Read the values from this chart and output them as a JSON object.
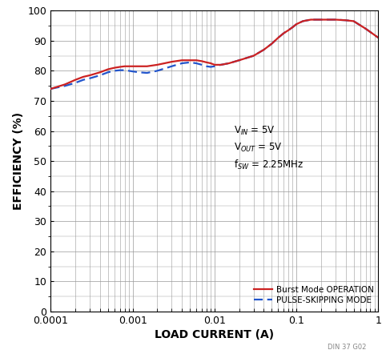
{
  "xlabel": "LOAD CURRENT (A)",
  "ylabel": "EFFICIENCY (%)",
  "ylim": [
    0,
    100
  ],
  "yticks": [
    0,
    10,
    20,
    30,
    40,
    50,
    60,
    70,
    80,
    90,
    100
  ],
  "annotation_lines": [
    "V$_{IN}$ = 5V",
    "V$_{OUT}$ = 5V",
    "f$_{SW}$ = 2.25MHz"
  ],
  "burst_color": "#cc2222",
  "pulse_color": "#2255cc",
  "burst_x": [
    0.0001,
    0.00015,
    0.0002,
    0.00025,
    0.0003,
    0.0004,
    0.0005,
    0.0006,
    0.0007,
    0.0008,
    0.0009,
    0.001,
    0.0012,
    0.0015,
    0.002,
    0.003,
    0.004,
    0.005,
    0.006,
    0.007,
    0.008,
    0.009,
    0.01,
    0.012,
    0.015,
    0.02,
    0.03,
    0.04,
    0.05,
    0.06,
    0.07,
    0.08,
    0.09,
    0.1,
    0.12,
    0.15,
    0.2,
    0.3,
    0.4,
    0.5,
    0.7,
    1.0
  ],
  "burst_y": [
    74,
    75.5,
    77,
    78,
    78.5,
    79.5,
    80.5,
    81,
    81.3,
    81.5,
    81.5,
    81.5,
    81.5,
    81.5,
    82.0,
    83.0,
    83.5,
    83.5,
    83.5,
    83.2,
    82.8,
    82.5,
    82.0,
    82.0,
    82.5,
    83.5,
    85.0,
    87.0,
    89.0,
    91.0,
    92.5,
    93.5,
    94.5,
    95.5,
    96.5,
    97.0,
    97.0,
    97.0,
    96.8,
    96.5,
    94.0,
    91.0
  ],
  "pulse_x": [
    0.0001,
    0.00015,
    0.0002,
    0.00025,
    0.0003,
    0.0004,
    0.0005,
    0.0006,
    0.0007,
    0.0008,
    0.0009,
    0.001,
    0.0012,
    0.0015,
    0.002,
    0.003,
    0.004,
    0.005,
    0.006,
    0.007,
    0.008,
    0.009,
    0.01,
    0.012,
    0.015,
    0.02,
    0.03,
    0.04,
    0.05,
    0.06,
    0.07,
    0.08,
    0.09,
    0.1,
    0.12,
    0.15,
    0.2,
    0.3,
    0.4,
    0.5,
    0.7,
    1.0
  ],
  "pulse_y": [
    74,
    75.0,
    76.0,
    77.0,
    77.5,
    78.5,
    79.5,
    80.0,
    80.2,
    80.2,
    80.0,
    79.8,
    79.5,
    79.3,
    80.0,
    81.5,
    82.5,
    82.8,
    82.5,
    82.0,
    81.5,
    81.3,
    81.5,
    82.0,
    82.5,
    83.5,
    85.0,
    87.0,
    89.0,
    91.0,
    92.5,
    93.5,
    94.5,
    95.5,
    96.5,
    97.0,
    97.0,
    97.0,
    96.8,
    96.5,
    94.0,
    91.0
  ],
  "watermark": "DIN 37 G02",
  "background_color": "#ffffff",
  "grid_color": "#999999"
}
